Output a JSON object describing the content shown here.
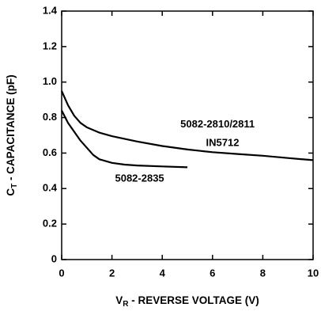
{
  "chart_data": {
    "type": "line",
    "xlabel": {
      "symbol": "V",
      "subscript": "R",
      "text": " - REVERSE VOLTAGE (V)"
    },
    "ylabel": {
      "symbol": "C",
      "subscript": "T",
      "text": " - CAPACITANCE (pF)"
    },
    "xlim": [
      0,
      10
    ],
    "xticks": [
      0,
      2,
      4,
      6,
      8,
      10
    ],
    "ylim": [
      0,
      1.4
    ],
    "yticks": [
      0,
      0.2,
      0.4,
      0.6,
      0.8,
      {
        "value": 1,
        "label": "1.0"
      },
      1.2,
      1.4
    ],
    "grid": false,
    "series": [
      {
        "color": "#000000",
        "x": [
          0,
          0.25,
          0.5,
          0.75,
          1,
          1.5,
          2,
          3,
          4,
          5,
          6,
          7,
          8,
          9,
          10
        ],
        "values": [
          0.95,
          0.87,
          0.81,
          0.77,
          0.745,
          0.715,
          0.695,
          0.665,
          0.64,
          0.62,
          0.605,
          0.595,
          0.585,
          0.572,
          0.56
        ]
      },
      {
        "color": "#000000",
        "x": [
          0,
          0.25,
          0.5,
          0.75,
          1,
          1.25,
          1.5,
          2,
          2.5,
          3,
          4,
          5
        ],
        "values": [
          0.84,
          0.77,
          0.72,
          0.67,
          0.63,
          0.59,
          0.565,
          0.545,
          0.535,
          0.53,
          0.525,
          0.52
        ]
      }
    ],
    "annotations": [
      {
        "text": "5082-2810/2811",
        "x": 6.2,
        "y": 0.76
      },
      {
        "text": "IN5712",
        "x": 6.4,
        "y": 0.655
      },
      {
        "text": "5082-2835",
        "x": 3.1,
        "y": 0.455
      }
    ]
  }
}
